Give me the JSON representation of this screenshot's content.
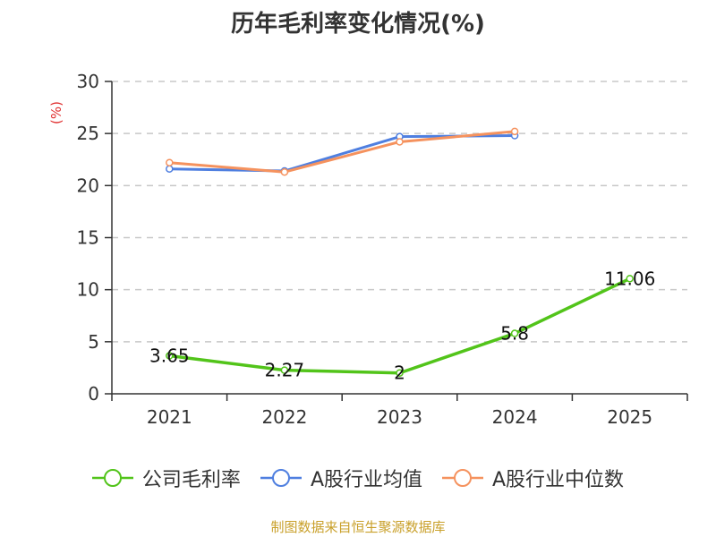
{
  "chart_data": {
    "type": "line",
    "title": "历年毛利率变化情况(%)",
    "ylabel": "(%)",
    "xlabel": "",
    "categories": [
      "2021",
      "2022",
      "2023",
      "2024",
      "2025"
    ],
    "ylim": [
      0,
      30
    ],
    "yticks": [
      0,
      5,
      10,
      15,
      20,
      25,
      30
    ],
    "grid": true,
    "legend_position": "bottom",
    "series": [
      {
        "name": "公司毛利率",
        "color": "#52c41a",
        "values": [
          3.65,
          2.27,
          2,
          5.8,
          11.06
        ],
        "data_labels": [
          "3.65",
          "2.27",
          "2",
          "5.8",
          "11.06"
        ]
      },
      {
        "name": "A股行业均值",
        "color": "#4f7fe0",
        "values": [
          21.6,
          21.4,
          24.7,
          24.8,
          null
        ]
      },
      {
        "name": "A股行业中位数",
        "color": "#f5925e",
        "values": [
          22.2,
          21.3,
          24.2,
          25.2,
          null
        ]
      }
    ]
  },
  "footer": {
    "source": "制图数据来自恒生聚源数据库"
  }
}
